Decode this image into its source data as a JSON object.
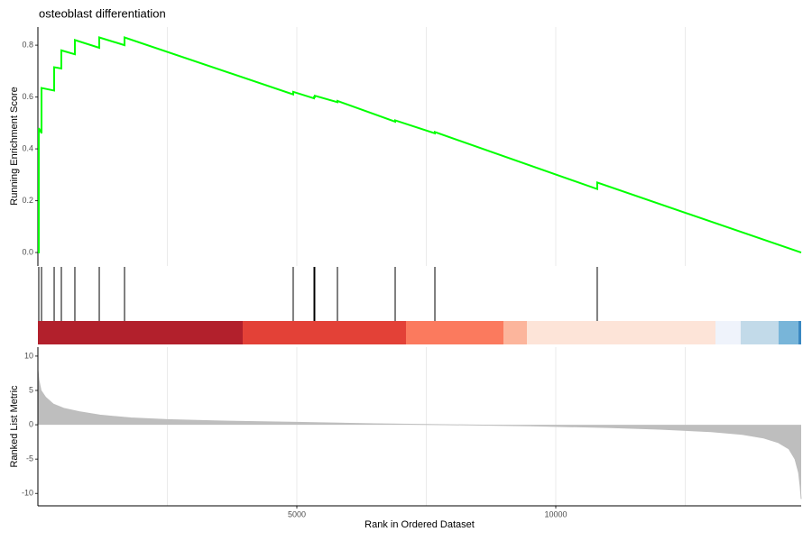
{
  "chart_data": [
    {
      "type": "line",
      "title": "osteoblast differentiation",
      "y_label": "Running Enrichment Score",
      "x": [
        0,
        17,
        17,
        70,
        70,
        314,
        314,
        453,
        453,
        714,
        714,
        1185,
        1185,
        1673,
        1673,
        4930,
        4930,
        5331,
        5331,
        5348,
        5348,
        5784,
        5784,
        6899,
        6899,
        7666,
        7666,
        10801,
        10801,
        14739
      ],
      "values": [
        0,
        0,
        0.48,
        0.46,
        0.635,
        0.625,
        0.715,
        0.71,
        0.78,
        0.765,
        0.82,
        0.79,
        0.83,
        0.8,
        0.83,
        0.61,
        0.62,
        0.595,
        0.6,
        0.6,
        0.605,
        0.58,
        0.585,
        0.505,
        0.51,
        0.46,
        0.465,
        0.245,
        0.27,
        0
      ],
      "color": "#00ff00",
      "xlim": [
        0,
        14739
      ],
      "ylim": [
        -0.052,
        0.87
      ],
      "yticks": [
        {
          "value": 0,
          "label": "0.0"
        },
        0.2,
        0.4,
        0.6,
        0.8
      ],
      "xgrid": [
        2500,
        5000,
        7500,
        10000,
        12500
      ]
    },
    {
      "type": "rug",
      "x": [
        17,
        70,
        314,
        453,
        714,
        1185,
        1673,
        4930,
        5331,
        5348,
        5784,
        6899,
        7666,
        10801
      ],
      "color": "#000000",
      "xlim": [
        0,
        14739
      ],
      "color_bar": {
        "breaks": [
          0,
          3955,
          7108,
          8990,
          9443,
          13084,
          13571,
          14303,
          14686,
          14739
        ],
        "colors": [
          "#b2202c",
          "#e34137",
          "#fb7a5e",
          "#fcb59c",
          "#fde4d8",
          "#eff3fb",
          "#c2dae9",
          "#78b5d9",
          "#3a88c2"
        ]
      }
    },
    {
      "type": "area",
      "y_label": "Ranked List Metric",
      "x_label": "Rank in Ordered Dataset",
      "x": [
        0,
        20,
        60,
        150,
        300,
        500,
        800,
        1200,
        1800,
        2500,
        3500,
        5000,
        6500,
        8000,
        9500,
        11000,
        12000,
        13000,
        13600,
        14000,
        14300,
        14500,
        14620,
        14690,
        14720,
        14739
      ],
      "values": [
        8.0,
        6.5,
        5,
        4,
        3,
        2.4,
        1.9,
        1.4,
        1.0,
        0.75,
        0.55,
        0.35,
        0.15,
        0,
        -0.15,
        -0.4,
        -0.65,
        -1.0,
        -1.4,
        -1.9,
        -2.6,
        -3.5,
        -5,
        -7,
        -9,
        -10.8
      ],
      "color": "#bebebe",
      "xlim": [
        0,
        14739
      ],
      "ylim": [
        -11.8,
        11.3
      ],
      "yticks": [
        -10,
        -5,
        0,
        5,
        10
      ],
      "xticks": [
        5000,
        10000
      ],
      "xgrid": [
        2500,
        5000,
        7500,
        10000,
        12500
      ]
    }
  ]
}
